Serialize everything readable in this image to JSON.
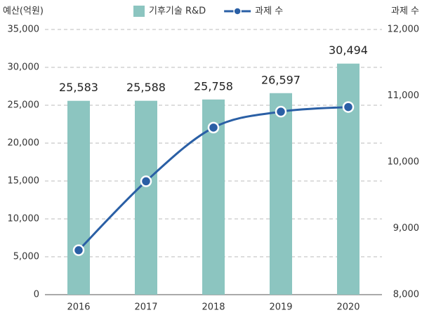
{
  "chart_data": {
    "type": "bar",
    "y_label": "예산(억원)",
    "y2_label": "과제 수",
    "categories": [
      "2016",
      "2017",
      "2018",
      "2019",
      "2020"
    ],
    "series": [
      {
        "name": "기후기술 R&D",
        "type": "bar",
        "color": "#8cc5c0",
        "values": [
          25583,
          25588,
          25758,
          26597,
          30494
        ],
        "value_labels": [
          "25,583",
          "25,588",
          "25,758",
          "26,597",
          "30,494"
        ]
      },
      {
        "name": "과제 수",
        "type": "line",
        "axis": "y2",
        "color": "#2a5fa5",
        "values": [
          8670,
          9710,
          10520,
          10760,
          10830
        ]
      }
    ],
    "ylim": [
      0,
      35000
    ],
    "yticks": [
      0,
      {
        "value": 5000,
        "label": "5,000"
      },
      {
        "value": 10000,
        "label": "10,000"
      },
      {
        "value": 15000,
        "label": "15,000"
      },
      {
        "value": 20000,
        "label": "20,000"
      },
      {
        "value": 25000,
        "label": "25,000"
      },
      {
        "value": 30000,
        "label": "30,000"
      },
      {
        "value": 35000,
        "label": "35,000"
      }
    ],
    "y2lim": [
      8000,
      12000
    ],
    "y2ticks": [
      {
        "value": 8000,
        "label": "8,000"
      },
      {
        "value": 9000,
        "label": "9,000"
      },
      {
        "value": 10000,
        "label": "10,000"
      },
      {
        "value": 11000,
        "label": "11,000"
      },
      {
        "value": 12000,
        "label": "12,000"
      }
    ],
    "grid": true,
    "legend": "top"
  }
}
